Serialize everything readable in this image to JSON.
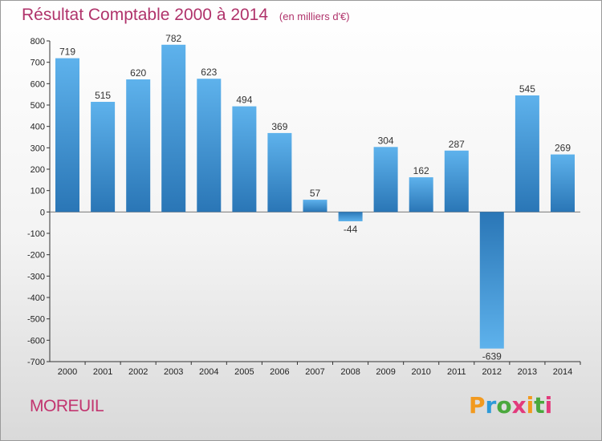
{
  "chart_data": {
    "type": "bar",
    "title": "Résultat Comptable 2000 à 2014",
    "subtitle": "(en milliers d'€)",
    "categories": [
      "2000",
      "2001",
      "2002",
      "2003",
      "2004",
      "2005",
      "2006",
      "2007",
      "2008",
      "2009",
      "2010",
      "2011",
      "2012",
      "2013",
      "2014"
    ],
    "values": [
      719,
      515,
      620,
      782,
      623,
      494,
      369,
      57,
      -44,
      304,
      162,
      287,
      -639,
      545,
      269
    ],
    "data_labels": [
      "719",
      "515",
      "620",
      "782",
      "623",
      "494",
      "369",
      "57",
      "-44",
      "304",
      "162",
      "287",
      "-639",
      "545",
      "269"
    ],
    "ylim": [
      -700,
      800
    ],
    "yticks": [
      800,
      700,
      600,
      500,
      400,
      300,
      200,
      100,
      0,
      -100,
      -200,
      -300,
      -400,
      -500,
      -600,
      -700
    ],
    "ytick_labels": [
      "800",
      "700",
      "600",
      "500",
      "400",
      "300",
      "200",
      "100",
      "0",
      "-100",
      "-200",
      "-300",
      "-400",
      "-500",
      "-600",
      "-700"
    ],
    "xlabel": "",
    "ylabel": "",
    "grid": false,
    "colors": {
      "bar_light": "#5aade8",
      "bar_dark": "#2a78b8",
      "title": "#b0336b"
    }
  },
  "footer": {
    "town": "MOREUIL",
    "brand": [
      {
        "ch": "P",
        "color": "#f29a1f"
      },
      {
        "ch": "r",
        "color": "#2e9ad8"
      },
      {
        "ch": "o",
        "color": "#4aa83c"
      },
      {
        "ch": "x",
        "color": "#e23a7c"
      },
      {
        "ch": "i",
        "color": "#f29a1f"
      },
      {
        "ch": "t",
        "color": "#4aa83c"
      },
      {
        "ch": "i",
        "color": "#e23a7c"
      }
    ]
  }
}
